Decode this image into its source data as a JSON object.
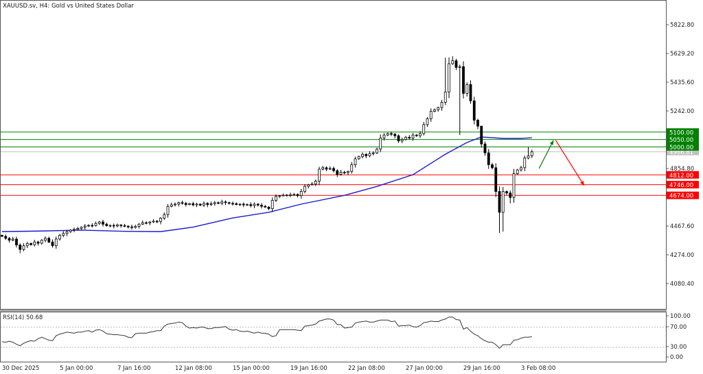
{
  "chart_data": {
    "type": "candlestick",
    "title": "XAUUSD.sv, H4:  Gold vs United States Dollar",
    "price_axis": {
      "ticks": [
        "5822.80",
        "5629.20",
        "5435.60",
        "5242.00",
        "4854.80",
        "4467.60",
        "4274.00",
        "4080.40"
      ],
      "range": [
        3960,
        5990
      ]
    },
    "time_axis": {
      "ticks": [
        "30 Dec 2025",
        "5 Jan 00:00",
        "7 Jan 16:00",
        "12 Jan 08:00",
        "15 Jan 00:00",
        "19 Jan 16:00",
        "22 Jan 08:00",
        "27 Jan 00:00",
        "29 Jan 16:00",
        "3 Feb 08:00"
      ],
      "tick_candle_index": [
        0,
        16,
        32,
        48,
        64,
        80,
        96,
        112,
        128,
        144
      ]
    },
    "closes": [
      4398,
      4385,
      4372,
      4380,
      4340,
      4310,
      4335,
      4350,
      4342,
      4360,
      4352,
      4372,
      4385,
      4360,
      4335,
      4380,
      4405,
      4418,
      4430,
      4440,
      4445,
      4452,
      4460,
      4468,
      4472,
      4470,
      4485,
      4495,
      4480,
      4470,
      4472,
      4468,
      4475,
      4470,
      4466,
      4462,
      4458,
      4465,
      4480,
      4490,
      4488,
      4495,
      4500,
      4498,
      4520,
      4545,
      4600,
      4610,
      4615,
      4625,
      4620,
      4612,
      4618,
      4610,
      4615,
      4608,
      4620,
      4612,
      4618,
      4625,
      4620,
      4630,
      4625,
      4620,
      4618,
      4612,
      4615,
      4610,
      4612,
      4605,
      4615,
      4608,
      4600,
      4595,
      4585,
      4640,
      4668,
      4672,
      4675,
      4676,
      4678,
      4680,
      4672,
      4700,
      4735,
      4745,
      4750,
      4770,
      4850,
      4860,
      4850,
      4855,
      4840,
      4815,
      4830,
      4828,
      4835,
      4880,
      4920,
      4935,
      4950,
      4940,
      4955,
      4960,
      4985,
      5060,
      5080,
      5090,
      5085,
      5075,
      5040,
      5050,
      5065,
      5060,
      5080,
      5075,
      5090,
      5150,
      5190,
      5240,
      5250,
      5265,
      5300,
      5370,
      5560,
      5580,
      5535,
      5540,
      5360,
      5420,
      5310,
      5180,
      5140,
      5020,
      4960,
      4880,
      4860,
      4700,
      4560,
      4700,
      4690,
      4660,
      4820,
      4845,
      4860,
      4925,
      4940,
      4967
    ],
    "first_open": 4405,
    "wick_extremes": [
      {
        "i": 5,
        "low": 4285
      },
      {
        "i": 123,
        "high": 5600
      },
      {
        "i": 125,
        "high": 5610
      },
      {
        "i": 127,
        "low": 5080
      },
      {
        "i": 133,
        "high": 5110
      },
      {
        "i": 138,
        "low": 4420
      },
      {
        "i": 139,
        "low": 4430
      },
      {
        "i": 141,
        "low": 4620
      },
      {
        "i": 146,
        "high": 5000
      }
    ],
    "moving_average": {
      "color": "#1a1acc",
      "points": [
        [
          0,
          4430
        ],
        [
          11,
          4434
        ],
        [
          22,
          4440
        ],
        [
          34,
          4432
        ],
        [
          44,
          4430
        ],
        [
          53,
          4460
        ],
        [
          64,
          4522
        ],
        [
          74,
          4560
        ],
        [
          83,
          4615
        ],
        [
          95,
          4674
        ],
        [
          104,
          4734
        ],
        [
          114,
          4813
        ],
        [
          123,
          4951
        ],
        [
          129,
          5030
        ],
        [
          133,
          5067
        ],
        [
          139,
          5057
        ],
        [
          144,
          5057
        ],
        [
          147,
          5062
        ]
      ]
    },
    "levels": [
      {
        "price": 5100,
        "label": "5100.00",
        "color": "#008000"
      },
      {
        "price": 5050,
        "label": "5050.00",
        "color": "#008000"
      },
      {
        "price": 5000,
        "label": "5000.00",
        "color": "#008000"
      },
      {
        "price": 4812,
        "label": "4812.00",
        "color": "#ff0000"
      },
      {
        "price": 4746,
        "label": "4746.00",
        "color": "#ff0000"
      },
      {
        "price": 4674,
        "label": "4674.00",
        "color": "#ff0000"
      }
    ],
    "current_price": {
      "price": 4966.81,
      "label": "4966.81",
      "color": "#c0c0c0"
    },
    "arrows": [
      {
        "color": "#008000",
        "from": [
          149,
          4855
        ],
        "to": [
          153,
          5045
        ]
      },
      {
        "color": "#ff0000",
        "from": [
          153.6,
          5045
        ],
        "to": [
          161.5,
          4740
        ]
      }
    ],
    "rsi": {
      "label": "RSI(14) 50.68",
      "ticks": [
        "100.00",
        "70.00",
        "30.00",
        "0.00"
      ],
      "levels": [
        70,
        30
      ],
      "values": [
        41,
        40,
        42,
        40,
        36,
        33,
        38,
        41,
        43,
        42,
        47,
        50,
        47,
        44,
        43,
        53,
        56,
        58,
        60,
        59,
        58,
        60,
        60,
        62,
        63,
        60,
        64,
        65,
        62,
        57,
        56,
        55,
        55,
        54,
        53,
        50,
        49,
        57,
        58,
        58,
        58,
        60,
        61,
        63,
        63,
        72,
        76,
        77,
        78,
        80,
        79,
        72,
        68,
        69,
        68,
        70,
        70,
        67,
        67,
        69,
        69,
        70,
        71,
        66,
        64,
        65,
        62,
        61,
        62,
        60,
        58,
        60,
        58,
        58,
        56,
        51,
        53,
        65,
        65,
        65,
        65,
        65,
        64,
        63,
        72,
        73,
        74,
        76,
        82,
        84,
        86,
        86,
        84,
        75,
        75,
        68,
        69,
        70,
        78,
        80,
        81,
        82,
        80,
        80,
        82,
        84,
        84,
        84,
        81,
        82,
        72,
        73,
        73,
        74,
        71,
        70,
        73,
        79,
        80,
        82,
        81,
        81,
        84,
        86,
        90,
        90,
        85,
        84,
        66,
        69,
        62,
        56,
        53,
        47,
        43,
        40,
        40,
        35,
        28,
        35,
        35,
        35,
        44,
        45,
        48,
        50,
        50,
        51
      ]
    }
  }
}
